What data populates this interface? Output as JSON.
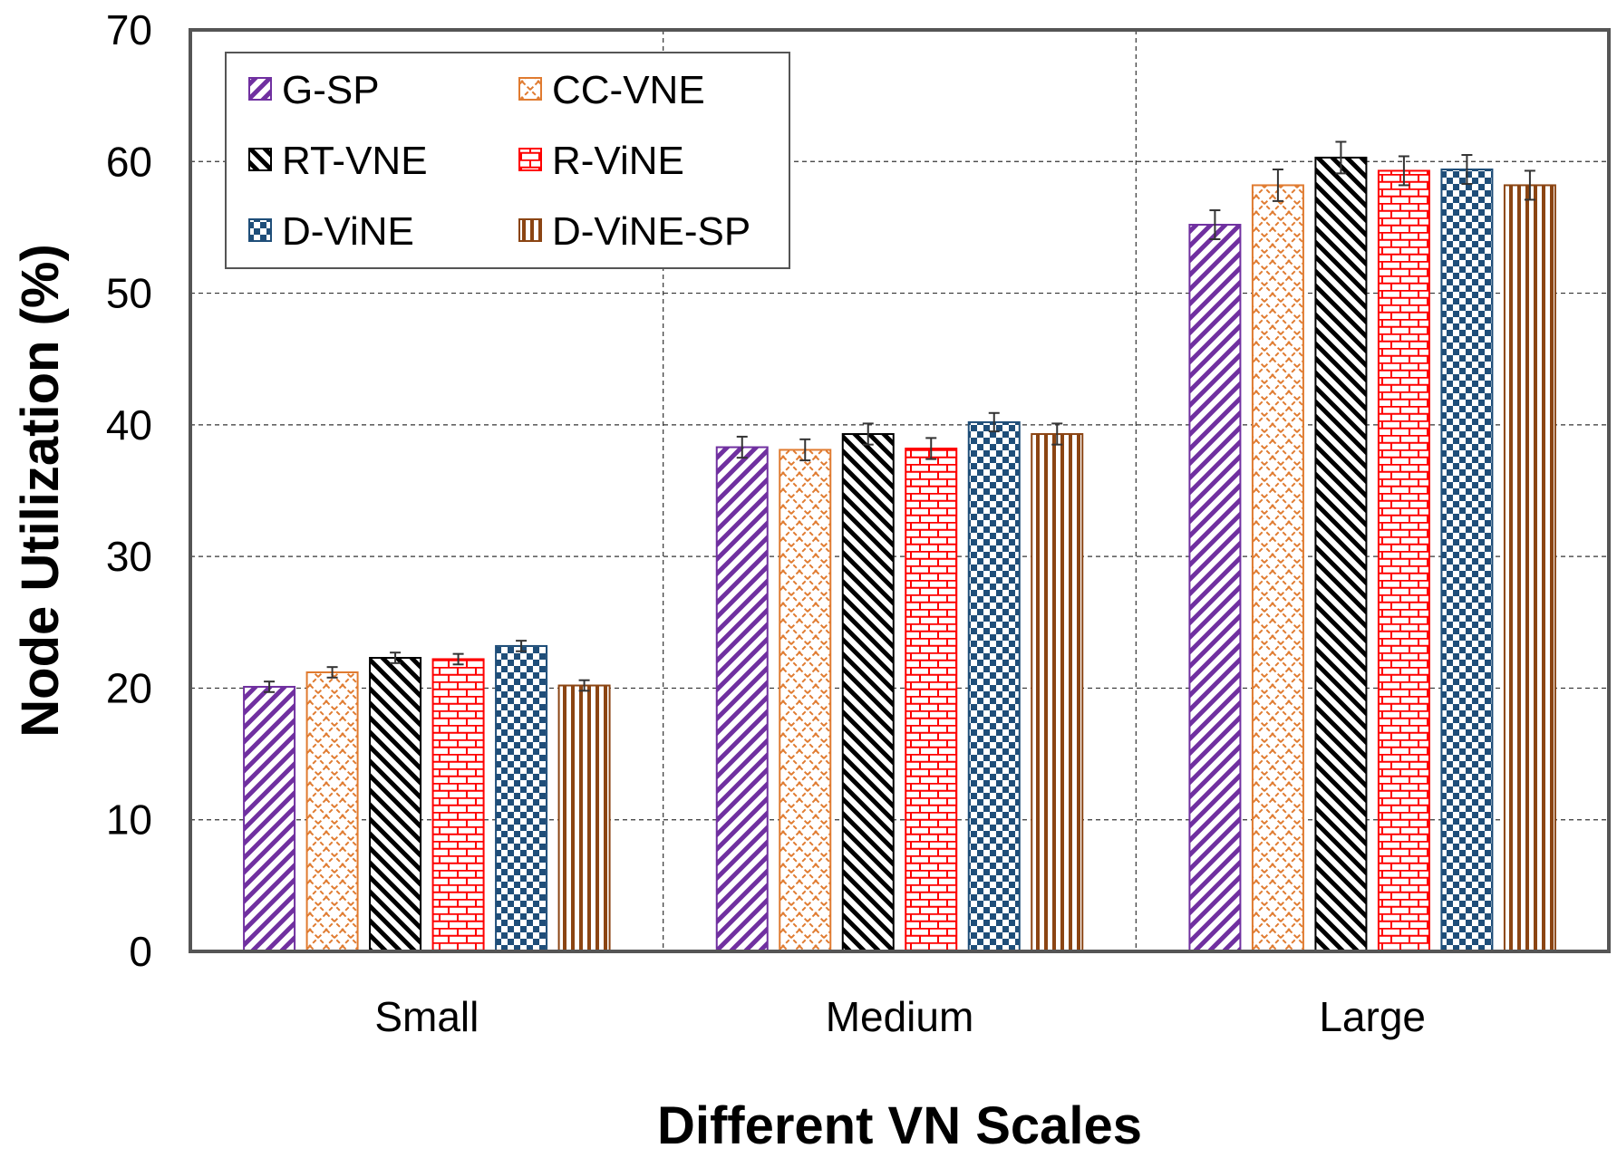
{
  "chart_data": {
    "type": "bar",
    "title": "",
    "xlabel": "Different VN Scales",
    "ylabel": "Node Utilization (%)",
    "ylim": [
      0,
      70
    ],
    "yticks": [
      0,
      10,
      20,
      30,
      40,
      50,
      60,
      70
    ],
    "grid": true,
    "legend_position": "top-left",
    "categories": [
      "Small",
      "Medium",
      "Large"
    ],
    "series": [
      {
        "name": "G-SP",
        "values": [
          20.1,
          38.3,
          55.2
        ],
        "errors": [
          0.4,
          0.8,
          1.1
        ],
        "color": "#7030a0",
        "pattern": "diag-up"
      },
      {
        "name": "CC-VNE",
        "values": [
          21.2,
          38.1,
          58.2
        ],
        "errors": [
          0.4,
          0.8,
          1.2
        ],
        "color": "#e07b30",
        "pattern": "lattice"
      },
      {
        "name": "RT-VNE",
        "values": [
          22.3,
          39.3,
          60.3
        ],
        "errors": [
          0.4,
          0.8,
          1.2
        ],
        "color": "#000000",
        "pattern": "diag-down"
      },
      {
        "name": "R-ViNE",
        "values": [
          22.2,
          38.2,
          59.3
        ],
        "errors": [
          0.4,
          0.8,
          1.1
        ],
        "color": "#ff0000",
        "pattern": "brick"
      },
      {
        "name": "D-ViNE",
        "values": [
          23.2,
          40.2,
          59.4
        ],
        "errors": [
          0.4,
          0.7,
          1.1
        ],
        "color": "#1f4e79",
        "pattern": "checker"
      },
      {
        "name": "D-ViNE-SP",
        "values": [
          20.2,
          39.3,
          58.2
        ],
        "errors": [
          0.4,
          0.8,
          1.1
        ],
        "color": "#8b4513",
        "pattern": "vertical"
      }
    ]
  }
}
